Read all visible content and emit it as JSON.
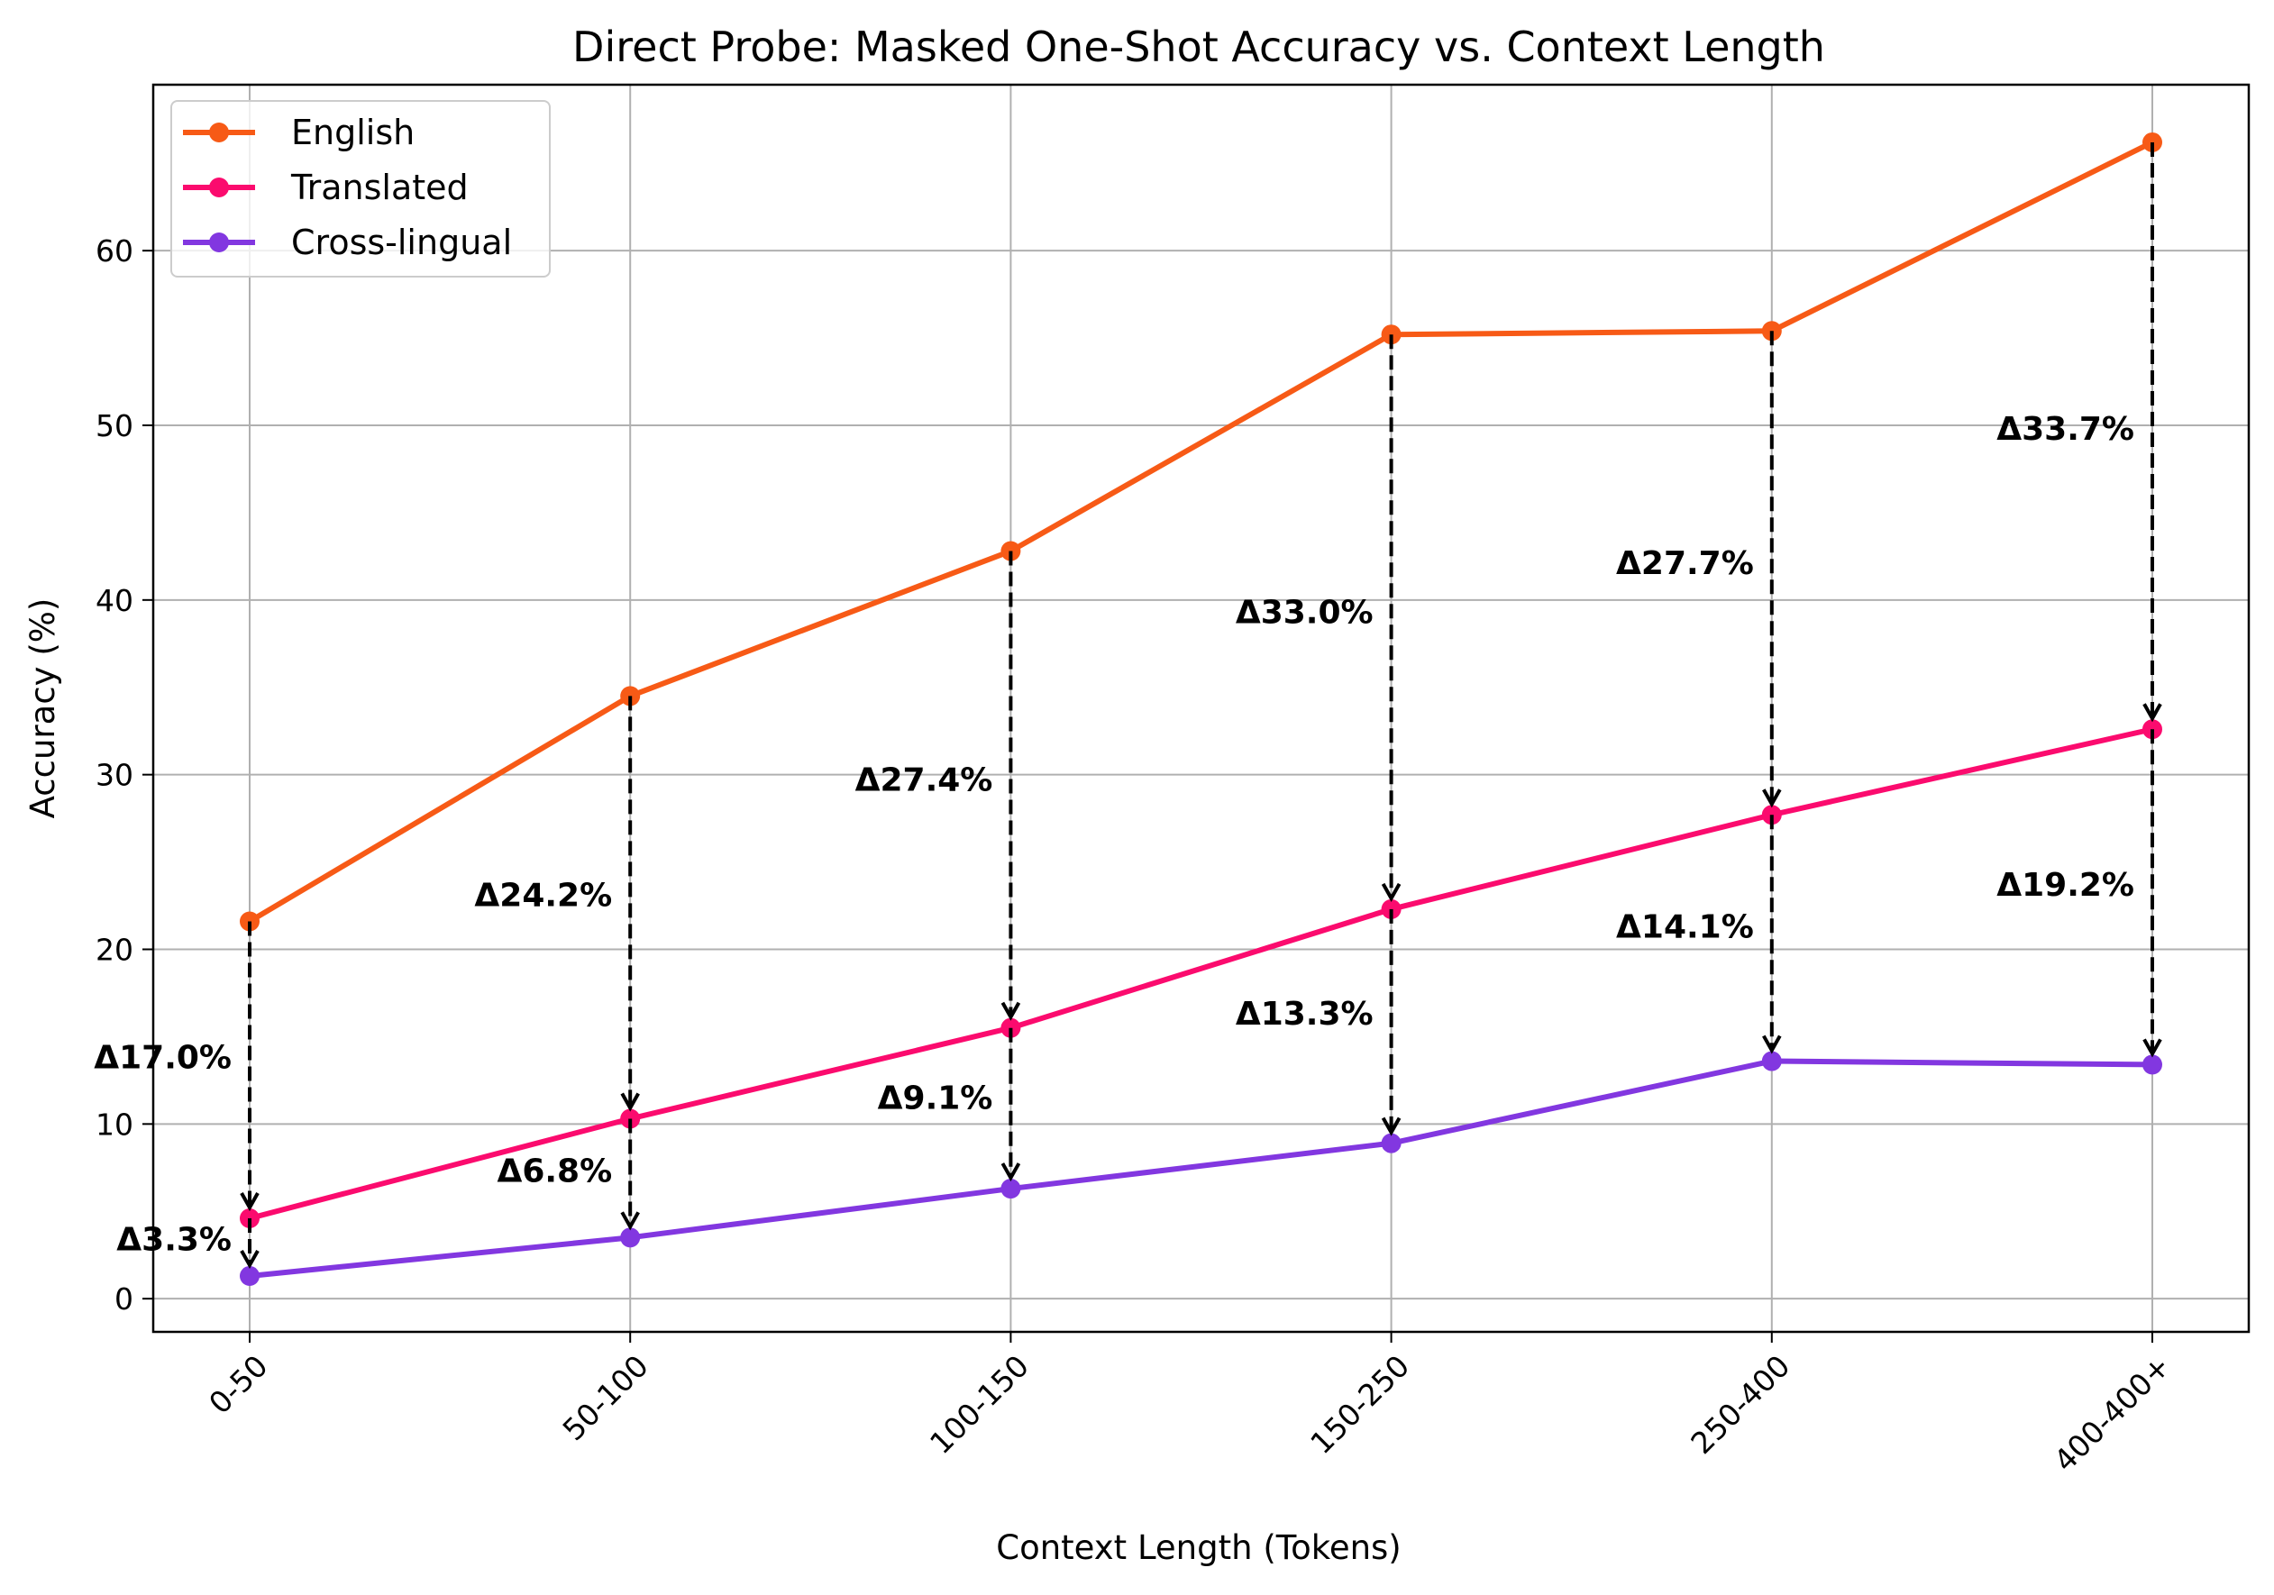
{
  "chart_data": {
    "type": "line",
    "title": "Direct Probe: Masked One-Shot Accuracy vs. Context Length",
    "xlabel": "Context Length (Tokens)",
    "ylabel": "Accuracy (%)",
    "categories": [
      "0-50",
      "50-100",
      "100-150",
      "150-250",
      "250-400",
      "400-400+"
    ],
    "ylim": [
      -1.9,
      69.5
    ],
    "yticks": [
      0,
      10,
      20,
      30,
      40,
      50,
      60
    ],
    "grid": true,
    "legend_position": "top-left",
    "series": [
      {
        "name": "English",
        "color": "#F75A16",
        "values": [
          21.6,
          34.5,
          42.8,
          55.2,
          55.4,
          66.2
        ]
      },
      {
        "name": "Translated",
        "color": "#FB0B6E",
        "values": [
          4.6,
          10.3,
          15.5,
          22.3,
          27.7,
          32.6
        ]
      },
      {
        "name": "Cross-lingual",
        "color": "#8237E0",
        "values": [
          1.3,
          3.5,
          6.3,
          8.9,
          13.6,
          13.4
        ]
      }
    ],
    "annotations": [
      {
        "label": "Δ17.0%",
        "category": "0-50",
        "from_series": "English",
        "to_series": "Translated",
        "y": 13.8
      },
      {
        "label": "Δ3.3%",
        "category": "0-50",
        "from_series": "Translated",
        "to_series": "Cross-lingual",
        "y": 3.4
      },
      {
        "label": "Δ24.2%",
        "category": "50-100",
        "from_series": "English",
        "to_series": "Translated",
        "y": 23.1
      },
      {
        "label": "Δ6.8%",
        "category": "50-100",
        "from_series": "Translated",
        "to_series": "Cross-lingual",
        "y": 7.3
      },
      {
        "label": "Δ27.4%",
        "category": "100-150",
        "from_series": "English",
        "to_series": "Translated",
        "y": 29.7
      },
      {
        "label": "Δ9.1%",
        "category": "100-150",
        "from_series": "Translated",
        "to_series": "Cross-lingual",
        "y": 11.5
      },
      {
        "label": "Δ33.0%",
        "category": "150-250",
        "from_series": "English",
        "to_series": "Translated",
        "y": 39.3
      },
      {
        "label": "Δ13.3%",
        "category": "150-250",
        "from_series": "Translated",
        "to_series": "Cross-lingual",
        "y": 16.3
      },
      {
        "label": "Δ27.7%",
        "category": "250-400",
        "from_series": "English",
        "to_series": "Translated",
        "y": 42.1
      },
      {
        "label": "Δ14.1%",
        "category": "250-400",
        "from_series": "Translated",
        "to_series": "Cross-lingual",
        "y": 21.3
      },
      {
        "label": "Δ33.7%",
        "category": "400-400+",
        "from_series": "English",
        "to_series": "Translated",
        "y": 49.8
      },
      {
        "label": "Δ19.2%",
        "category": "400-400+",
        "from_series": "Translated",
        "to_series": "Cross-lingual",
        "y": 23.7
      }
    ]
  }
}
